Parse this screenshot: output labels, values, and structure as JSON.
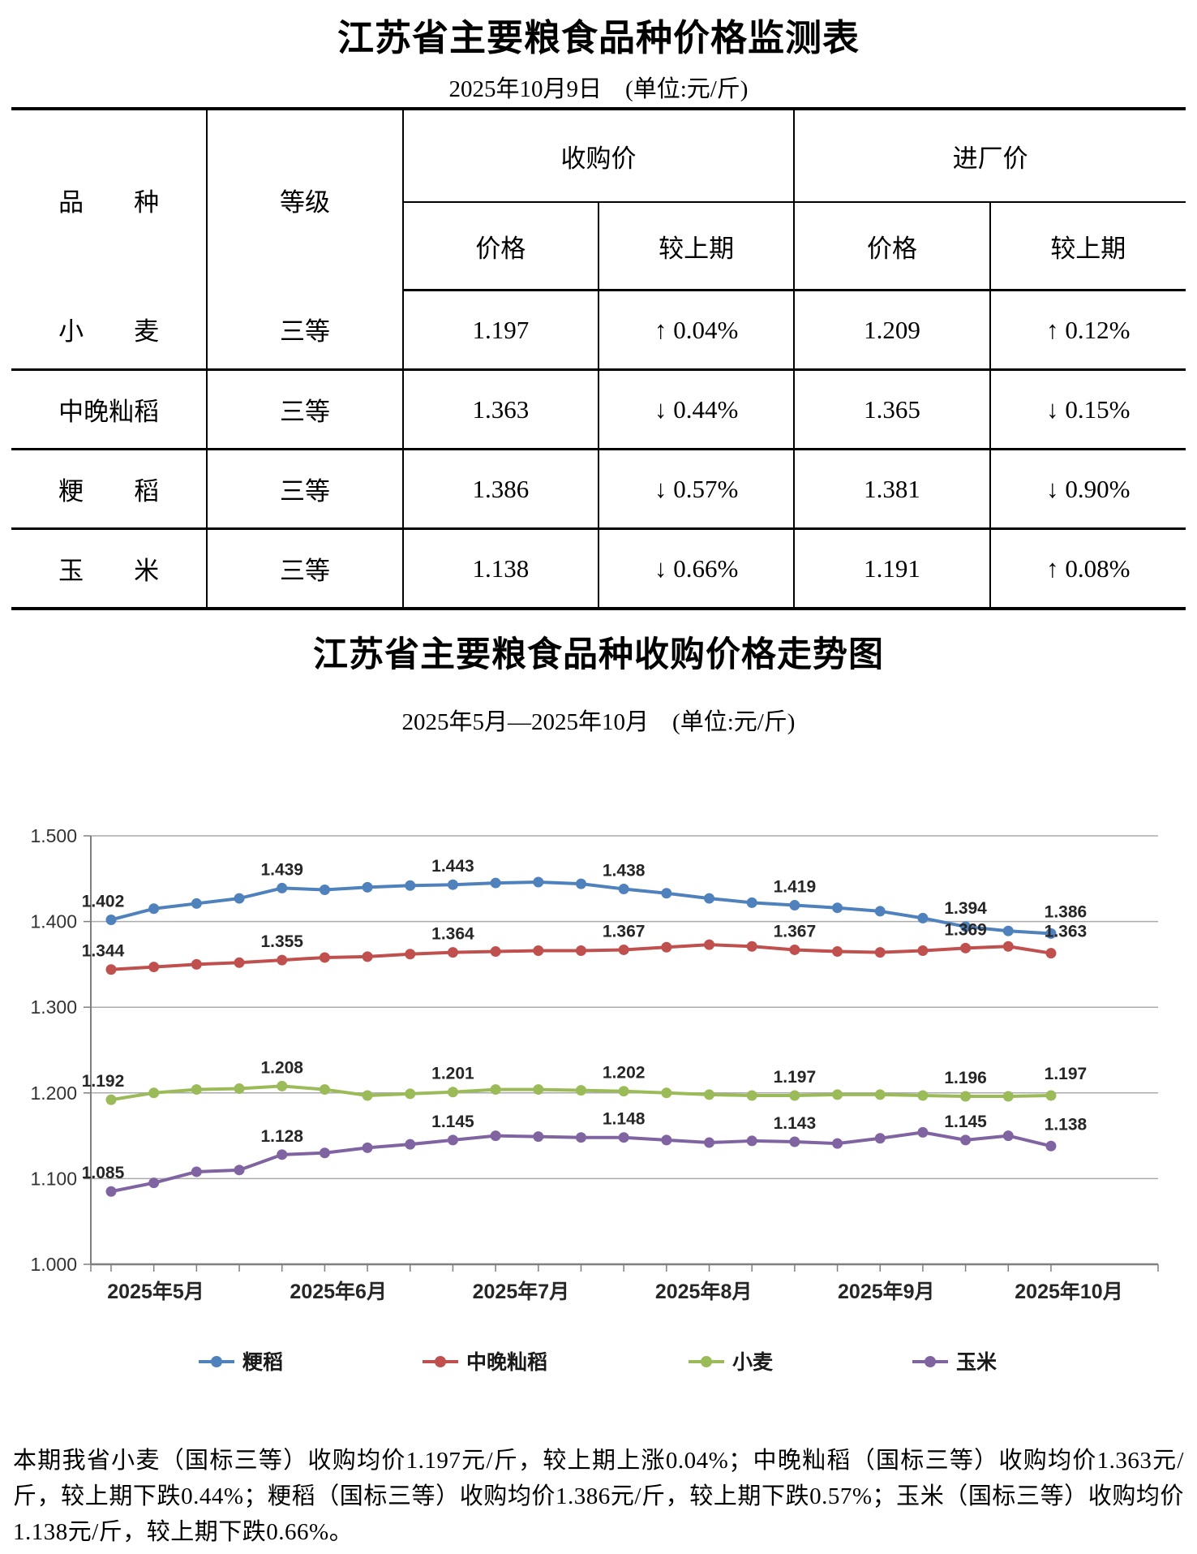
{
  "page": {
    "doc_title": "江苏省主要粮食品种价格监测表",
    "doc_subtitle": "2025年10月9日　(单位:元/斤)",
    "chart_title": "江苏省主要粮食品种收购价格走势图",
    "chart_subtitle": "2025年5月—2025年10月　(单位:元/斤)",
    "summary": "本期我省小麦（国标三等）收购均价1.197元/斤，较上期上涨0.04%；中晚籼稻（国标三等）收购均价1.363元/斤，较上期下跌0.44%；粳稻（国标三等）收购均价1.386元/斤，较上期下跌0.57%；玉米（国标三等）收购均价1.138元/斤，较上期下跌0.66%。"
  },
  "table": {
    "headers": {
      "variety": "品　　种",
      "grade": "等级",
      "purchase_group": "收购价",
      "factory_group": "进厂价",
      "price": "价格",
      "vs_prev": "较上期"
    },
    "rows": [
      {
        "variety": "小　　麦",
        "grade": "三等",
        "purchase_price": "1.197",
        "purchase_change": "↑ 0.04%",
        "factory_price": "1.209",
        "factory_change": "↑ 0.12%"
      },
      {
        "variety": "中晚籼稻",
        "grade": "三等",
        "purchase_price": "1.363",
        "purchase_change": "↓ 0.44%",
        "factory_price": "1.365",
        "factory_change": "↓ 0.15%"
      },
      {
        "variety": "粳　　稻",
        "grade": "三等",
        "purchase_price": "1.386",
        "purchase_change": "↓ 0.57%",
        "factory_price": "1.381",
        "factory_change": "↓ 0.90%"
      },
      {
        "variety": "玉　　米",
        "grade": "三等",
        "purchase_price": "1.138",
        "purchase_change": "↓ 0.66%",
        "factory_price": "1.191",
        "factory_change": "↑ 0.08%"
      }
    ]
  },
  "chart_data": {
    "type": "line",
    "title": "江苏省主要粮食品种收购价格走势图",
    "subtitle": "2025年5月—2025年10月  (单位:元/斤)",
    "ylim": [
      1.0,
      1.5
    ],
    "ytick_labels": [
      "1.500",
      "1.400",
      "1.300",
      "1.200",
      "1.100",
      "1.000"
    ],
    "x_labels": [
      "2025年5月",
      "2025年6月",
      "2025年7月",
      "2025年8月",
      "2025年9月",
      "2025年10月"
    ],
    "grid": true,
    "legend_position": "bottom",
    "label_indices": [
      0,
      4,
      8,
      12,
      16,
      20,
      22
    ],
    "axis_color": "#7f7f7f",
    "grid_color": "#ababab",
    "text_color": "#262626",
    "series": [
      {
        "name": "粳稻",
        "color": "#4F81BD",
        "values": [
          1.402,
          1.415,
          1.421,
          1.427,
          1.439,
          1.437,
          1.44,
          1.442,
          1.443,
          1.445,
          1.446,
          1.444,
          1.438,
          1.433,
          1.427,
          1.422,
          1.419,
          1.416,
          1.412,
          1.404,
          1.394,
          1.389,
          1.386
        ],
        "labels": [
          "1.402",
          "1.439",
          "1.443",
          "1.438",
          "1.419",
          "1.394",
          "1.386"
        ]
      },
      {
        "name": "中晚籼稻",
        "color": "#C0504D",
        "values": [
          1.344,
          1.347,
          1.35,
          1.352,
          1.355,
          1.358,
          1.359,
          1.362,
          1.364,
          1.365,
          1.366,
          1.366,
          1.367,
          1.37,
          1.373,
          1.371,
          1.367,
          1.365,
          1.364,
          1.366,
          1.369,
          1.371,
          1.363
        ],
        "labels": [
          "1.344",
          "1.355",
          "1.364",
          "1.367",
          "1.367",
          "1.369",
          "1.363"
        ]
      },
      {
        "name": "小麦",
        "color": "#9BBB59",
        "values": [
          1.192,
          1.2,
          1.204,
          1.205,
          1.208,
          1.204,
          1.197,
          1.199,
          1.201,
          1.204,
          1.204,
          1.203,
          1.202,
          1.2,
          1.198,
          1.197,
          1.197,
          1.198,
          1.198,
          1.197,
          1.196,
          1.196,
          1.197
        ],
        "labels": [
          "1.192",
          "1.208",
          "1.201",
          "1.202",
          "1.197",
          "1.196",
          "1.197"
        ]
      },
      {
        "name": "玉米",
        "color": "#8064A2",
        "values": [
          1.085,
          1.095,
          1.108,
          1.11,
          1.128,
          1.13,
          1.136,
          1.14,
          1.145,
          1.15,
          1.149,
          1.148,
          1.148,
          1.145,
          1.142,
          1.144,
          1.143,
          1.141,
          1.147,
          1.154,
          1.145,
          1.15,
          1.138
        ],
        "labels": [
          "1.085",
          "1.128",
          "1.145",
          "1.148",
          "1.143",
          "1.145",
          "1.138"
        ]
      }
    ]
  }
}
